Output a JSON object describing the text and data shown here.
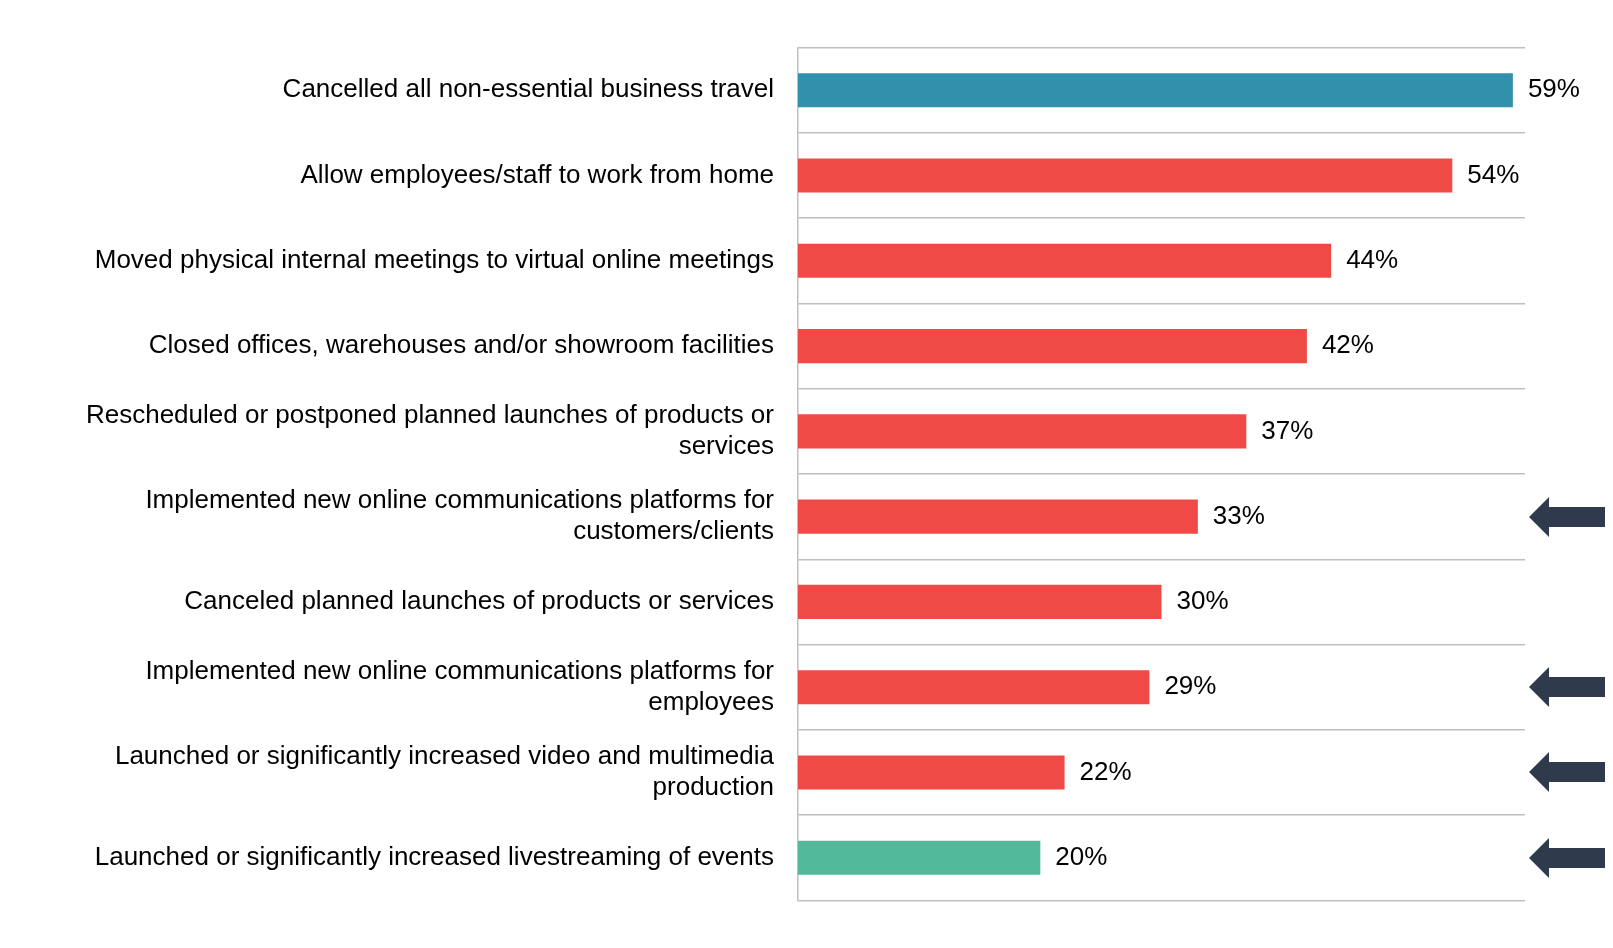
{
  "chart_data": {
    "type": "bar",
    "orientation": "horizontal",
    "categories": [
      "Cancelled all non-essential business travel",
      "Allow employees/staff to work from home",
      "Moved physical internal meetings to virtual online meetings",
      "Closed offices, warehouses and/or showroom facilities",
      "Rescheduled or postponed planned launches of products or services",
      "Implemented new online communications platforms for customers/clients",
      "Canceled planned launches of products or services",
      "Implemented new online communications platforms for employees",
      "Launched or significantly increased video and multimedia production",
      "Launched or significantly increased livestreaming of events"
    ],
    "values": [
      59,
      54,
      44,
      42,
      37,
      33,
      30,
      29,
      22,
      20
    ],
    "colors": [
      "#3190ac",
      "#ef4a46",
      "#ef4a46",
      "#ef4a46",
      "#ef4a46",
      "#ef4a46",
      "#ef4a46",
      "#ef4a46",
      "#ef4a46",
      "#52b99a"
    ],
    "value_labels": [
      "59%",
      "54%",
      "44%",
      "42%",
      "37%",
      "33%",
      "30%",
      "29%",
      "22%",
      "20%"
    ],
    "grid": "y",
    "legend": false
  }
}
